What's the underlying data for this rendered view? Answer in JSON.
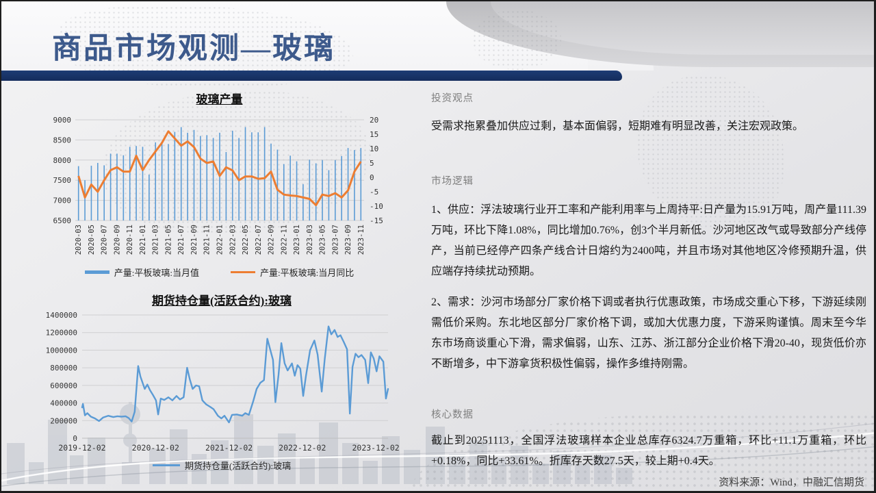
{
  "slide": {
    "title": "商品市场观测—玻璃",
    "source": "资料来源：Wind，中融汇信期货"
  },
  "sections": {
    "viewpoint": {
      "header": "投资观点",
      "body": "受需求拖累叠加供应过剩，基本面偏弱，短期难有明显改善，关注宏观政策。"
    },
    "logic": {
      "header": "市场逻辑",
      "supply": "1、供应：浮法玻璃行业开工率和产能利用率与上周持平:日产量为15.91万吨，周产量111.39万吨，环比下降1.08%，同比增加0.76%，创3个半月新低。沙河地区改气或导致部分产线停产，当前已经停产四条产线合计日熔约为2400吨，并且市场对其他地区冷修预期升温，供应端存持续扰动预期。",
      "demand": "2、需求：沙河市场部分厂家价格下调或者执行优惠政策，市场成交重心下移，下游延续刚需低价采购。东北地区部分厂家价格下调，或加大优惠力度，下游采购谨慎。周末至今华东市场商谈重心下滑，需求偏弱，山东、江苏、浙江部分企业价格下滑20-40，现货低价亦不断增多，中下游拿货积极性偏弱，操作多维持刚需。"
    },
    "core": {
      "header": "核心数据",
      "body": "截止到20251113，全国浮法玻璃样本企业总库存6324.7万重箱，环比+11.1万重箱，环比+0.18%，同比+33.61%。折库存天数27.5天，较上期+0.4天。"
    }
  },
  "chart_data": [
    {
      "type": "bar",
      "title": "玻璃产量",
      "categories": [
        "2020-03",
        "2020-04",
        "2020-05",
        "2020-06",
        "2020-07",
        "2020-08",
        "2020-09",
        "2020-10",
        "2020-11",
        "2020-12",
        "2021-01",
        "2021-02",
        "2021-03",
        "2021-04",
        "2021-05",
        "2021-06",
        "2021-07",
        "2021-08",
        "2021-09",
        "2021-10",
        "2021-11",
        "2021-12",
        "2022-01",
        "2022-02",
        "2022-03",
        "2022-04",
        "2022-05",
        "2022-06",
        "2022-07",
        "2022-08",
        "2022-09",
        "2022-10",
        "2022-11",
        "2022-12",
        "2023-01",
        "2023-02",
        "2023-03",
        "2023-04",
        "2023-05",
        "2023-06",
        "2023-07",
        "2023-08",
        "2023-09",
        "2023-10",
        "2023-11"
      ],
      "x_tick_every": 2,
      "series": [
        {
          "name": "产量:平板玻璃:当月值",
          "type": "bar",
          "axis": "left",
          "color": "#5B9BD5",
          "values": [
            7850,
            7500,
            7860,
            7930,
            7870,
            8160,
            8160,
            8120,
            8330,
            8350,
            8330,
            7640,
            8440,
            8450,
            8400,
            8700,
            8820,
            8680,
            8750,
            8600,
            8620,
            8550,
            8680,
            8200,
            8730,
            8550,
            8820,
            8690,
            8690,
            8820,
            8410,
            8260,
            7900,
            8110,
            7970,
            7400,
            8010,
            7920,
            8000,
            7750,
            8000,
            8100,
            8300,
            8250,
            8300
          ]
        },
        {
          "name": "产量:平板玻璃:当月同比",
          "type": "line",
          "axis": "right",
          "color": "#ED7D31",
          "values": [
            0.5,
            -7,
            -2.5,
            -5,
            -1,
            2.5,
            3.5,
            2,
            2,
            7.5,
            2.5,
            6,
            9,
            12,
            16,
            13.5,
            11,
            12.5,
            10.5,
            6.5,
            5,
            5.5,
            0.5,
            3.5,
            2.4,
            -1,
            0.3,
            0.3,
            -0.5,
            -0.3,
            2,
            -4.3,
            -6,
            -6.3,
            -6.5,
            -7,
            -7.5,
            -9.7,
            -6,
            -6.5,
            -5.5,
            -7,
            -4.5,
            2,
            5.5
          ]
        }
      ],
      "left_axis": {
        "min": 6500,
        "max": 9000,
        "ticks": [
          6500,
          7000,
          7500,
          8000,
          8500,
          9000
        ]
      },
      "right_axis": {
        "min": -15,
        "max": 20,
        "ticks": [
          -15,
          -10,
          -5,
          0,
          5,
          10,
          15,
          20
        ]
      },
      "grid": true,
      "legend_position": "bottom"
    },
    {
      "type": "line",
      "title": "期货持仓量(活跃合约):玻璃",
      "series_name": "期货持仓量(活跃合约):玻璃",
      "color": "#5B9BD5",
      "y_axis": {
        "min": 0,
        "max": 1400000,
        "ticks": [
          0,
          200000,
          400000,
          600000,
          800000,
          1000000,
          1200000,
          1400000
        ]
      },
      "x_ticks": [
        "2019-12-02",
        "2020-12-02",
        "2021-12-02",
        "2022-12-02",
        "2023-12-02"
      ],
      "grid": true,
      "legend_position": "bottom",
      "sampled_points": [
        [
          "2019-12-02",
          350000
        ],
        [
          "2019-12-06",
          390000
        ],
        [
          "2019-12-16",
          260000
        ],
        [
          "2019-12-28",
          285000
        ],
        [
          "2020-01-15",
          245000
        ],
        [
          "2020-02-05",
          225000
        ],
        [
          "2020-02-25",
          195000
        ],
        [
          "2020-03-15",
          235000
        ],
        [
          "2020-04-10",
          255000
        ],
        [
          "2020-05-05",
          240000
        ],
        [
          "2020-05-25",
          250000
        ],
        [
          "2020-06-15",
          245000
        ],
        [
          "2020-07-05",
          250000
        ],
        [
          "2020-07-20",
          230000
        ],
        [
          "2020-08-05",
          190000
        ],
        [
          "2020-08-20",
          300000
        ],
        [
          "2020-09-07",
          820000
        ],
        [
          "2020-09-18",
          700000
        ],
        [
          "2020-10-09",
          560000
        ],
        [
          "2020-10-22",
          610000
        ],
        [
          "2020-11-05",
          545000
        ],
        [
          "2020-11-20",
          490000
        ],
        [
          "2020-12-04",
          430000
        ],
        [
          "2020-12-15",
          270000
        ],
        [
          "2020-12-28",
          450000
        ],
        [
          "2021-01-15",
          435000
        ],
        [
          "2021-02-05",
          465000
        ],
        [
          "2021-02-25",
          430000
        ],
        [
          "2021-03-15",
          480000
        ],
        [
          "2021-04-02",
          440000
        ],
        [
          "2021-04-20",
          465000
        ],
        [
          "2021-05-07",
          800000
        ],
        [
          "2021-05-20",
          670000
        ],
        [
          "2021-06-04",
          560000
        ],
        [
          "2021-06-21",
          600000
        ],
        [
          "2021-07-06",
          590000
        ],
        [
          "2021-07-22",
          430000
        ],
        [
          "2021-08-10",
          385000
        ],
        [
          "2021-09-01",
          355000
        ],
        [
          "2021-09-17",
          330000
        ],
        [
          "2021-10-08",
          255000
        ],
        [
          "2021-10-25",
          225000
        ],
        [
          "2021-11-10",
          255000
        ],
        [
          "2021-12-02",
          180000
        ],
        [
          "2021-12-17",
          265000
        ],
        [
          "2022-01-10",
          270000
        ],
        [
          "2022-02-07",
          255000
        ],
        [
          "2022-02-22",
          285000
        ],
        [
          "2022-03-10",
          265000
        ],
        [
          "2022-04-01",
          420000
        ],
        [
          "2022-04-18",
          560000
        ],
        [
          "2022-05-06",
          630000
        ],
        [
          "2022-05-24",
          660000
        ],
        [
          "2022-06-10",
          1130000
        ],
        [
          "2022-06-24",
          1010000
        ],
        [
          "2022-07-08",
          890000
        ],
        [
          "2022-07-20",
          410000
        ],
        [
          "2022-08-05",
          720000
        ],
        [
          "2022-08-19",
          1080000
        ],
        [
          "2022-09-05",
          850000
        ],
        [
          "2022-09-20",
          770000
        ],
        [
          "2022-10-11",
          850000
        ],
        [
          "2022-10-25",
          710000
        ],
        [
          "2022-11-08",
          830000
        ],
        [
          "2022-11-22",
          790000
        ],
        [
          "2022-12-06",
          480000
        ],
        [
          "2022-12-20",
          710000
        ],
        [
          "2023-01-10",
          1000000
        ],
        [
          "2023-02-01",
          1110000
        ],
        [
          "2023-02-17",
          950000
        ],
        [
          "2023-03-07",
          530000
        ],
        [
          "2023-03-22",
          900000
        ],
        [
          "2023-04-10",
          1270000
        ],
        [
          "2023-04-24",
          1180000
        ],
        [
          "2023-05-10",
          1230000
        ],
        [
          "2023-05-25",
          1150000
        ],
        [
          "2023-06-09",
          1170000
        ],
        [
          "2023-06-26",
          1090000
        ],
        [
          "2023-07-11",
          1010000
        ],
        [
          "2023-07-25",
          280000
        ],
        [
          "2023-08-08",
          810000
        ],
        [
          "2023-08-23",
          960000
        ],
        [
          "2023-09-07",
          920000
        ],
        [
          "2023-09-22",
          945000
        ],
        [
          "2023-10-10",
          890000
        ],
        [
          "2023-10-25",
          625000
        ],
        [
          "2023-11-08",
          975000
        ],
        [
          "2023-11-22",
          905000
        ],
        [
          "2023-12-06",
          760000
        ],
        [
          "2023-12-20",
          930000
        ],
        [
          "2024-01-09",
          870000
        ],
        [
          "2024-01-22",
          450000
        ],
        [
          "2024-02-02",
          560000
        ]
      ]
    }
  ]
}
